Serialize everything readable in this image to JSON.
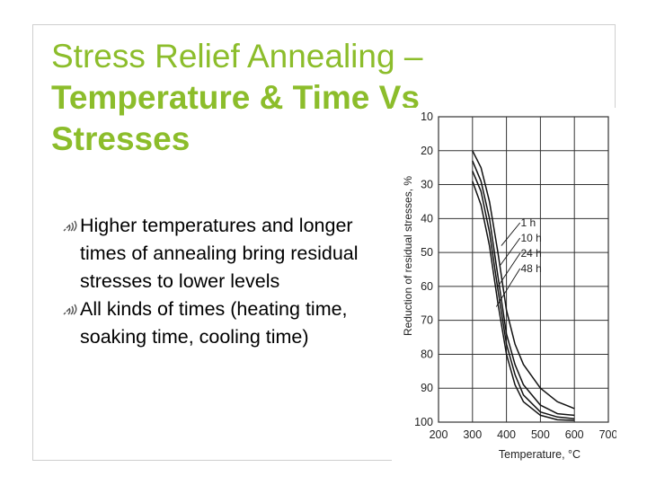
{
  "slide": {
    "title_line1": "Stress Relief Annealing –",
    "title_line2": "Temperature & Time Vs",
    "title_line3": "Stresses",
    "bullets": [
      {
        "text": "Higher temperatures and longer times of annealing bring residual stresses to lower levels",
        "icon": "signal-bars-icon"
      },
      {
        "text": "All kinds of times (heating time, soaking time, cooling time)",
        "icon": "signal-bars-icon"
      }
    ],
    "accent_color": "#8cbd2b"
  },
  "chart_data": {
    "type": "line",
    "title": "",
    "xlabel": "Temperature, °C",
    "ylabel": "Reduction of residual stresses, %",
    "xlim": [
      200,
      700
    ],
    "ylim": [
      10,
      100
    ],
    "y_inverted": true,
    "x_ticks": [
      200,
      300,
      400,
      500,
      600,
      700
    ],
    "y_ticks": [
      10,
      20,
      30,
      40,
      50,
      60,
      70,
      80,
      90,
      100
    ],
    "grid": true,
    "series": [
      {
        "name": "1 h",
        "x": [
          300,
          325,
          350,
          375,
          400,
          425,
          450,
          500,
          550,
          600
        ],
        "y": [
          20,
          25,
          35,
          50,
          67,
          77,
          83,
          90,
          94,
          96
        ]
      },
      {
        "name": "10 h",
        "x": [
          300,
          325,
          350,
          375,
          400,
          425,
          450,
          500,
          550,
          600
        ],
        "y": [
          23,
          29,
          40,
          57,
          74,
          83,
          89,
          95,
          97.5,
          98
        ]
      },
      {
        "name": "24 h",
        "x": [
          300,
          325,
          350,
          375,
          400,
          425,
          450,
          500,
          550,
          600
        ],
        "y": [
          26,
          32,
          44,
          61,
          77,
          86,
          92,
          97,
          98.5,
          99
        ]
      },
      {
        "name": "48 h",
        "x": [
          300,
          325,
          350,
          375,
          400,
          425,
          450,
          500,
          550,
          600
        ],
        "y": [
          29,
          36,
          48,
          65,
          80,
          89,
          94,
          98,
          99.3,
          99.5
        ]
      }
    ]
  }
}
